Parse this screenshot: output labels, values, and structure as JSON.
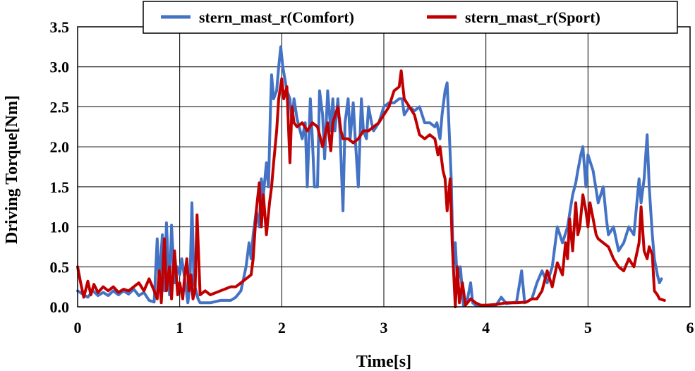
{
  "chart_data": {
    "type": "line",
    "xlabel": "Time[s]",
    "ylabel": "Driving Torque[Nm]",
    "xlim": [
      0,
      6
    ],
    "ylim": [
      0,
      3.5
    ],
    "x_ticks": [
      "0",
      "1",
      "2",
      "3",
      "4",
      "5",
      "6"
    ],
    "y_ticks": [
      "0.0",
      "0.5",
      "1.0",
      "1.5",
      "2.0",
      "2.5",
      "3.0",
      "3.5"
    ],
    "grid": true,
    "legend_position": "top",
    "series": [
      {
        "name": "stern_mast_r(Comfort)",
        "color": "#4472C4",
        "points": [
          [
            0.0,
            0.2
          ],
          [
            0.05,
            0.16
          ],
          [
            0.1,
            0.12
          ],
          [
            0.15,
            0.2
          ],
          [
            0.2,
            0.14
          ],
          [
            0.25,
            0.18
          ],
          [
            0.3,
            0.14
          ],
          [
            0.35,
            0.2
          ],
          [
            0.4,
            0.15
          ],
          [
            0.45,
            0.2
          ],
          [
            0.5,
            0.16
          ],
          [
            0.55,
            0.22
          ],
          [
            0.6,
            0.14
          ],
          [
            0.65,
            0.18
          ],
          [
            0.7,
            0.08
          ],
          [
            0.75,
            0.06
          ],
          [
            0.78,
            0.85
          ],
          [
            0.8,
            0.3
          ],
          [
            0.83,
            0.9
          ],
          [
            0.85,
            0.2
          ],
          [
            0.87,
            1.05
          ],
          [
            0.9,
            0.15
          ],
          [
            0.92,
            1.02
          ],
          [
            0.95,
            0.3
          ],
          [
            0.98,
            0.5
          ],
          [
            1.0,
            0.4
          ],
          [
            1.02,
            0.6
          ],
          [
            1.05,
            0.35
          ],
          [
            1.07,
            0.15
          ],
          [
            1.08,
            0.05
          ],
          [
            1.1,
            0.25
          ],
          [
            1.12,
            1.3
          ],
          [
            1.14,
            0.3
          ],
          [
            1.16,
            0.2
          ],
          [
            1.18,
            0.1
          ],
          [
            1.2,
            0.05
          ],
          [
            1.3,
            0.05
          ],
          [
            1.4,
            0.08
          ],
          [
            1.5,
            0.08
          ],
          [
            1.55,
            0.12
          ],
          [
            1.6,
            0.2
          ],
          [
            1.65,
            0.5
          ],
          [
            1.68,
            0.8
          ],
          [
            1.7,
            0.6
          ],
          [
            1.72,
            0.9
          ],
          [
            1.75,
            1.2
          ],
          [
            1.78,
            1.0
          ],
          [
            1.8,
            1.6
          ],
          [
            1.82,
            1.4
          ],
          [
            1.85,
            1.8
          ],
          [
            1.87,
            1.5
          ],
          [
            1.89,
            2.5
          ],
          [
            1.9,
            2.9
          ],
          [
            1.92,
            2.6
          ],
          [
            1.95,
            2.7
          ],
          [
            1.97,
            3.0
          ],
          [
            1.99,
            3.25
          ],
          [
            2.01,
            3.0
          ],
          [
            2.03,
            2.85
          ],
          [
            2.05,
            2.7
          ],
          [
            2.08,
            2.6
          ],
          [
            2.1,
            2.3
          ],
          [
            2.12,
            2.6
          ],
          [
            2.15,
            2.35
          ],
          [
            2.18,
            2.2
          ],
          [
            2.2,
            2.1
          ],
          [
            2.23,
            2.3
          ],
          [
            2.25,
            1.5
          ],
          [
            2.28,
            2.6
          ],
          [
            2.3,
            2.1
          ],
          [
            2.32,
            1.5
          ],
          [
            2.35,
            1.5
          ],
          [
            2.37,
            2.7
          ],
          [
            2.4,
            2.4
          ],
          [
            2.42,
            1.85
          ],
          [
            2.45,
            2.7
          ],
          [
            2.48,
            2.2
          ],
          [
            2.5,
            2.6
          ],
          [
            2.52,
            2.2
          ],
          [
            2.55,
            2.6
          ],
          [
            2.57,
            2.2
          ],
          [
            2.6,
            1.2
          ],
          [
            2.62,
            2.3
          ],
          [
            2.65,
            2.6
          ],
          [
            2.67,
            2.1
          ],
          [
            2.7,
            2.55
          ],
          [
            2.72,
            2.1
          ],
          [
            2.75,
            1.5
          ],
          [
            2.78,
            2.6
          ],
          [
            2.8,
            2.2
          ],
          [
            2.83,
            2.1
          ],
          [
            2.85,
            2.5
          ],
          [
            2.88,
            2.3
          ],
          [
            2.9,
            2.2
          ],
          [
            2.95,
            2.3
          ],
          [
            3.0,
            2.5
          ],
          [
            3.05,
            2.55
          ],
          [
            3.1,
            2.55
          ],
          [
            3.15,
            2.6
          ],
          [
            3.18,
            2.6
          ],
          [
            3.2,
            2.4
          ],
          [
            3.25,
            2.5
          ],
          [
            3.3,
            2.45
          ],
          [
            3.35,
            2.5
          ],
          [
            3.4,
            2.3
          ],
          [
            3.45,
            2.3
          ],
          [
            3.5,
            2.25
          ],
          [
            3.52,
            2.3
          ],
          [
            3.55,
            2.1
          ],
          [
            3.57,
            2.4
          ],
          [
            3.58,
            2.5
          ],
          [
            3.6,
            2.7
          ],
          [
            3.62,
            2.8
          ],
          [
            3.64,
            2.2
          ],
          [
            3.66,
            1.6
          ],
          [
            3.68,
            0.5
          ],
          [
            3.7,
            0.8
          ],
          [
            3.72,
            0.3
          ],
          [
            3.75,
            0.5
          ],
          [
            3.78,
            0.02
          ],
          [
            3.82,
            0.1
          ],
          [
            3.85,
            0.3
          ],
          [
            3.87,
            0.05
          ],
          [
            3.9,
            0.02
          ],
          [
            4.0,
            0.02
          ],
          [
            4.1,
            0.02
          ],
          [
            4.15,
            0.12
          ],
          [
            4.2,
            0.04
          ],
          [
            4.3,
            0.06
          ],
          [
            4.35,
            0.45
          ],
          [
            4.38,
            0.05
          ],
          [
            4.45,
            0.1
          ],
          [
            4.5,
            0.3
          ],
          [
            4.55,
            0.45
          ],
          [
            4.6,
            0.3
          ],
          [
            4.65,
            0.5
          ],
          [
            4.7,
            1.0
          ],
          [
            4.75,
            0.8
          ],
          [
            4.8,
            1.0
          ],
          [
            4.85,
            1.4
          ],
          [
            4.88,
            1.55
          ],
          [
            4.9,
            1.7
          ],
          [
            4.93,
            1.9
          ],
          [
            4.95,
            2.0
          ],
          [
            4.98,
            1.5
          ],
          [
            5.0,
            1.9
          ],
          [
            5.05,
            1.7
          ],
          [
            5.1,
            1.3
          ],
          [
            5.15,
            1.5
          ],
          [
            5.18,
            1.1
          ],
          [
            5.2,
            0.9
          ],
          [
            5.25,
            1.0
          ],
          [
            5.3,
            0.7
          ],
          [
            5.35,
            0.8
          ],
          [
            5.4,
            1.0
          ],
          [
            5.45,
            0.9
          ],
          [
            5.5,
            1.6
          ],
          [
            5.52,
            1.3
          ],
          [
            5.55,
            1.6
          ],
          [
            5.58,
            2.15
          ],
          [
            5.6,
            1.5
          ],
          [
            5.63,
            0.9
          ],
          [
            5.65,
            0.6
          ],
          [
            5.68,
            0.4
          ],
          [
            5.7,
            0.3
          ],
          [
            5.72,
            0.35
          ]
        ]
      },
      {
        "name": "stern_mast_r(Sport)",
        "color": "#C00000",
        "points": [
          [
            0.0,
            0.5
          ],
          [
            0.03,
            0.3
          ],
          [
            0.06,
            0.12
          ],
          [
            0.1,
            0.32
          ],
          [
            0.13,
            0.15
          ],
          [
            0.16,
            0.28
          ],
          [
            0.2,
            0.18
          ],
          [
            0.25,
            0.25
          ],
          [
            0.3,
            0.2
          ],
          [
            0.35,
            0.25
          ],
          [
            0.4,
            0.18
          ],
          [
            0.45,
            0.22
          ],
          [
            0.5,
            0.2
          ],
          [
            0.55,
            0.25
          ],
          [
            0.6,
            0.3
          ],
          [
            0.65,
            0.2
          ],
          [
            0.7,
            0.35
          ],
          [
            0.75,
            0.2
          ],
          [
            0.78,
            0.1
          ],
          [
            0.8,
            0.45
          ],
          [
            0.82,
            0.05
          ],
          [
            0.85,
            0.85
          ],
          [
            0.87,
            0.2
          ],
          [
            0.9,
            0.5
          ],
          [
            0.92,
            0.1
          ],
          [
            0.95,
            0.7
          ],
          [
            0.98,
            0.15
          ],
          [
            1.0,
            0.3
          ],
          [
            1.03,
            0.1
          ],
          [
            1.05,
            0.4
          ],
          [
            1.07,
            0.6
          ],
          [
            1.09,
            0.2
          ],
          [
            1.11,
            0.4
          ],
          [
            1.13,
            0.1
          ],
          [
            1.15,
            0.2
          ],
          [
            1.17,
            1.15
          ],
          [
            1.2,
            0.15
          ],
          [
            1.25,
            0.2
          ],
          [
            1.3,
            0.15
          ],
          [
            1.4,
            0.2
          ],
          [
            1.5,
            0.25
          ],
          [
            1.55,
            0.25
          ],
          [
            1.6,
            0.3
          ],
          [
            1.65,
            0.35
          ],
          [
            1.7,
            0.4
          ],
          [
            1.72,
            0.6
          ],
          [
            1.75,
            1.2
          ],
          [
            1.78,
            1.55
          ],
          [
            1.8,
            1.0
          ],
          [
            1.82,
            1.4
          ],
          [
            1.85,
            0.9
          ],
          [
            1.88,
            1.3
          ],
          [
            1.9,
            1.5
          ],
          [
            1.92,
            1.8
          ],
          [
            1.95,
            2.2
          ],
          [
            1.97,
            2.6
          ],
          [
            2.0,
            2.85
          ],
          [
            2.02,
            2.6
          ],
          [
            2.05,
            2.75
          ],
          [
            2.08,
            1.8
          ],
          [
            2.1,
            2.5
          ],
          [
            2.12,
            2.3
          ],
          [
            2.15,
            2.25
          ],
          [
            2.2,
            2.3
          ],
          [
            2.25,
            2.2
          ],
          [
            2.3,
            2.3
          ],
          [
            2.35,
            2.25
          ],
          [
            2.4,
            2.0
          ],
          [
            2.45,
            2.3
          ],
          [
            2.48,
            1.95
          ],
          [
            2.5,
            2.3
          ],
          [
            2.55,
            2.5
          ],
          [
            2.58,
            2.2
          ],
          [
            2.6,
            2.1
          ],
          [
            2.65,
            2.1
          ],
          [
            2.7,
            2.05
          ],
          [
            2.75,
            2.1
          ],
          [
            2.8,
            2.2
          ],
          [
            2.85,
            2.2
          ],
          [
            2.9,
            2.25
          ],
          [
            2.95,
            2.3
          ],
          [
            3.0,
            2.4
          ],
          [
            3.05,
            2.5
          ],
          [
            3.1,
            2.7
          ],
          [
            3.15,
            2.75
          ],
          [
            3.17,
            2.95
          ],
          [
            3.2,
            2.6
          ],
          [
            3.25,
            2.5
          ],
          [
            3.3,
            2.4
          ],
          [
            3.35,
            2.15
          ],
          [
            3.4,
            2.1
          ],
          [
            3.45,
            2.15
          ],
          [
            3.5,
            2.1
          ],
          [
            3.53,
            1.9
          ],
          [
            3.55,
            2.0
          ],
          [
            3.58,
            1.7
          ],
          [
            3.6,
            1.6
          ],
          [
            3.62,
            1.2
          ],
          [
            3.65,
            1.6
          ],
          [
            3.67,
            0.8
          ],
          [
            3.7,
            0.0
          ],
          [
            3.72,
            0.5
          ],
          [
            3.74,
            0.05
          ],
          [
            3.77,
            0.3
          ],
          [
            3.8,
            0.02
          ],
          [
            3.85,
            0.1
          ],
          [
            3.9,
            0.05
          ],
          [
            3.95,
            0.02
          ],
          [
            4.0,
            0.02
          ],
          [
            4.1,
            0.03
          ],
          [
            4.2,
            0.05
          ],
          [
            4.3,
            0.05
          ],
          [
            4.4,
            0.06
          ],
          [
            4.45,
            0.1
          ],
          [
            4.5,
            0.1
          ],
          [
            4.55,
            0.2
          ],
          [
            4.6,
            0.45
          ],
          [
            4.65,
            0.25
          ],
          [
            4.7,
            0.55
          ],
          [
            4.75,
            0.4
          ],
          [
            4.78,
            0.8
          ],
          [
            4.8,
            0.6
          ],
          [
            4.82,
            1.1
          ],
          [
            4.85,
            0.7
          ],
          [
            4.88,
            1.3
          ],
          [
            4.9,
            0.9
          ],
          [
            4.92,
            1.0
          ],
          [
            4.95,
            1.4
          ],
          [
            4.98,
            1.2
          ],
          [
            5.0,
            1.0
          ],
          [
            5.02,
            1.3
          ],
          [
            5.05,
            1.1
          ],
          [
            5.08,
            0.9
          ],
          [
            5.1,
            0.85
          ],
          [
            5.15,
            0.8
          ],
          [
            5.2,
            0.75
          ],
          [
            5.25,
            0.6
          ],
          [
            5.3,
            0.5
          ],
          [
            5.35,
            0.45
          ],
          [
            5.4,
            0.6
          ],
          [
            5.45,
            0.5
          ],
          [
            5.5,
            0.8
          ],
          [
            5.52,
            1.25
          ],
          [
            5.55,
            0.7
          ],
          [
            5.58,
            0.6
          ],
          [
            5.6,
            0.75
          ],
          [
            5.63,
            0.65
          ],
          [
            5.65,
            0.2
          ],
          [
            5.68,
            0.15
          ],
          [
            5.7,
            0.1
          ],
          [
            5.75,
            0.08
          ]
        ]
      }
    ]
  }
}
